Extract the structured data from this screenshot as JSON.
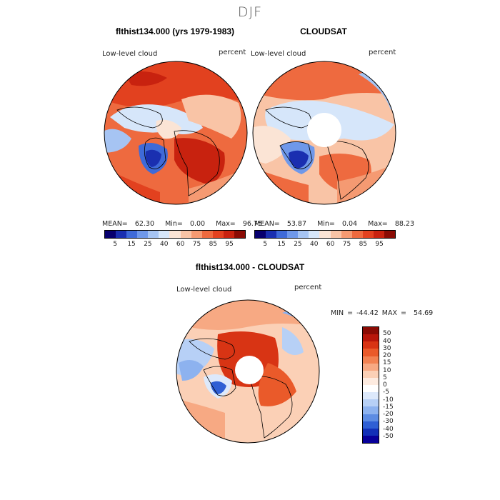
{
  "title": "DJF",
  "panel_left": {
    "title": "flthist134.000 (yrs 1979-1983)",
    "variable": "Low-level cloud",
    "units": "percent",
    "mean_label": "MEAN=",
    "mean": "62.30",
    "min_label": "Min=",
    "min": "0.00",
    "max_label": "Max=",
    "max": "96.75"
  },
  "panel_right": {
    "title": "CLOUDSAT",
    "variable": "Low-level cloud",
    "units": "percent",
    "mean_label": "MEAN=",
    "mean": "53.87",
    "min_label": "Min=",
    "min": "0.04",
    "max_label": "Max=",
    "max": "88.23"
  },
  "panel_diff": {
    "title": "flthist134.000 - CLOUDSAT",
    "variable": "Low-level cloud",
    "units": "percent",
    "min_label": "MIN =",
    "min": "-44.42",
    "max_label": "MAX =",
    "max": "54.69"
  },
  "colorbar_abs": {
    "colors": [
      "#08006e",
      "#1a2fb0",
      "#3f6ad8",
      "#6f98ea",
      "#a6c4f3",
      "#d6e6fa",
      "#fbe4d5",
      "#f9c4a6",
      "#f59a72",
      "#ee6a3f",
      "#e2411f",
      "#c8220f",
      "#8a0b04"
    ],
    "ticks": [
      "5",
      "15",
      "25",
      "40",
      "60",
      "75",
      "85",
      "95"
    ]
  },
  "colorbar_diff": {
    "colors": [
      "#8a0b04",
      "#b8160a",
      "#d83414",
      "#ea5a2a",
      "#f28252",
      "#f7a983",
      "#fbd0b6",
      "#fdebe0",
      "#ffffff",
      "#dde9fb",
      "#b7d0f6",
      "#8db2ef",
      "#5d8ce3",
      "#2f5fd4",
      "#1230b8",
      "#08009a"
    ],
    "ticks": [
      "50",
      "40",
      "30",
      "20",
      "15",
      "10",
      "5",
      "0",
      "-5",
      "-10",
      "-15",
      "-20",
      "-30",
      "-40",
      "-50"
    ]
  }
}
